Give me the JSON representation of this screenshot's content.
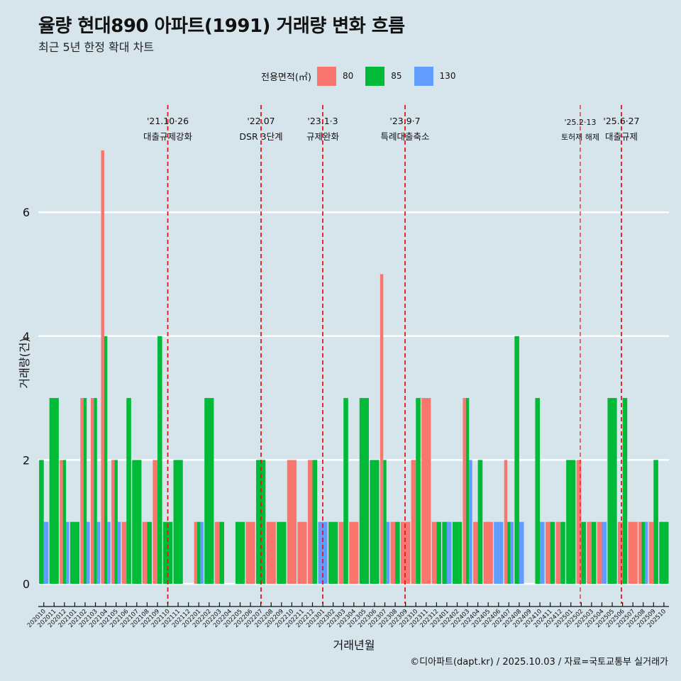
{
  "header": {
    "title": "율량 현대890 아파트(1991) 거래량 변화 흐름",
    "subtitle": "최근 5년 한정 확대 차트"
  },
  "legend": {
    "title": "전용면적(㎡)",
    "items": [
      {
        "label": "80",
        "color": "#F8766D"
      },
      {
        "label": "85",
        "color": "#00BA38"
      },
      {
        "label": "130",
        "color": "#619CFF"
      }
    ]
  },
  "caption": "©디아파트(dapt.kr) / 2025.10.03 / 자료=국토교통부 실거래가",
  "chart_data": {
    "type": "bar",
    "title": "율량 현대890 아파트(1991) 거래량 변화 흐름",
    "subtitle": "최근 5년 한정 확대 차트",
    "xlabel": "거래년월",
    "ylabel": "거래량(건)",
    "ylim": [
      -0.3,
      7.7
    ],
    "yticks": [
      0,
      2,
      4,
      6
    ],
    "grid": "horizontal",
    "legend_position": "top",
    "categories": [
      "202010",
      "202011",
      "202012",
      "202101",
      "202102",
      "202103",
      "202104",
      "202105",
      "202106",
      "202107",
      "202108",
      "202109",
      "202110",
      "202111",
      "202112",
      "202201",
      "202202",
      "202203",
      "202204",
      "202205",
      "202206",
      "202207",
      "202208",
      "202209",
      "202210",
      "202211",
      "202212",
      "202301",
      "202302",
      "202303",
      "202304",
      "202305",
      "202306",
      "202307",
      "202308",
      "202309",
      "202310",
      "202311",
      "202312",
      "202401",
      "202402",
      "202403",
      "202404",
      "202405",
      "202406",
      "202407",
      "202408",
      "202409",
      "202410",
      "202411",
      "202412",
      "202501",
      "202502",
      "202503",
      "202504",
      "202505",
      "202506",
      "202507",
      "202508",
      "202509",
      "202510"
    ],
    "series": [
      {
        "name": "80",
        "color": "#F8766D",
        "values": [
          0,
          0,
          2,
          0,
          3,
          3,
          7,
          2,
          1,
          0,
          1,
          2,
          0,
          0,
          0,
          1,
          0,
          1,
          0,
          0,
          1,
          0,
          1,
          0,
          2,
          1,
          2,
          0,
          0,
          1,
          1,
          0,
          0,
          5,
          1,
          1,
          2,
          3,
          1,
          0,
          0,
          3,
          1,
          1,
          0,
          2,
          0,
          0,
          0,
          1,
          1,
          0,
          2,
          1,
          1,
          0,
          1,
          1,
          1,
          1,
          0
        ]
      },
      {
        "name": "85",
        "color": "#00BA38",
        "values": [
          2,
          3,
          2,
          1,
          3,
          3,
          4,
          2,
          3,
          2,
          1,
          4,
          1,
          2,
          0,
          1,
          3,
          1,
          0,
          1,
          0,
          2,
          0,
          1,
          0,
          0,
          2,
          0,
          1,
          3,
          0,
          3,
          2,
          2,
          1,
          0,
          3,
          0,
          1,
          1,
          1,
          3,
          2,
          0,
          0,
          1,
          4,
          0,
          3,
          1,
          1,
          2,
          1,
          1,
          0,
          3,
          3,
          0,
          1,
          2,
          1
        ]
      },
      {
        "name": "130",
        "color": "#619CFF",
        "values": [
          1,
          0,
          1,
          0,
          1,
          1,
          1,
          1,
          0,
          0,
          0,
          0,
          0,
          0,
          0,
          1,
          0,
          0,
          0,
          0,
          0,
          0,
          0,
          0,
          0,
          0,
          0,
          1,
          0,
          0,
          0,
          0,
          0,
          1,
          0,
          0,
          0,
          0,
          0,
          1,
          0,
          2,
          0,
          0,
          1,
          1,
          1,
          0,
          1,
          0,
          0,
          0,
          0,
          0,
          1,
          0,
          0,
          0,
          1,
          0,
          0
        ]
      }
    ],
    "events": [
      {
        "month": "202110",
        "date": "'21.10·26",
        "label": "대출규제강화"
      },
      {
        "month": "202207",
        "date": "'22.07",
        "label": "DSR 3단계"
      },
      {
        "month": "202301",
        "date": "'23.1·3",
        "label": "규제완화"
      },
      {
        "month": "202309",
        "date": "'23.9·7",
        "label": "특례대출축소"
      },
      {
        "month": "202502",
        "date": "'25.2·13",
        "label": "토허제 해제"
      },
      {
        "month": "202506",
        "date": "'25.6·27",
        "label": "대출규제"
      }
    ]
  }
}
